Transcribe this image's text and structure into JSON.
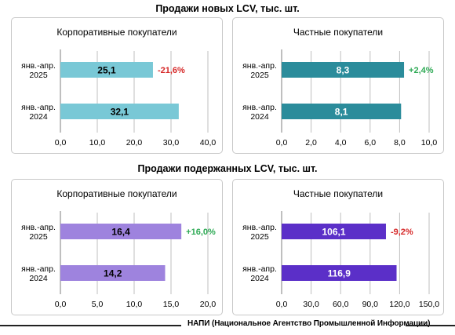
{
  "sections": [
    {
      "title": "Продажи новых LCV, тыс. шт."
    },
    {
      "title": "Продажи подержанных LCV, тыс. шт."
    }
  ],
  "footer": "НАПИ (Национальное Агентство Промышленной Информации)",
  "chart_data": [
    {
      "type": "bar",
      "title": "Корпоративные покупатели",
      "categories": [
        "янв.-апр.|2025",
        "янв.-апр.|2024"
      ],
      "values": [
        25.1,
        32.1
      ],
      "value_labels": [
        "25,1",
        "32,1"
      ],
      "change": "-21,6%",
      "change_color": "#d62828",
      "bar_color": "#79c8d6",
      "label_color": "#000000",
      "xlim": [
        0,
        40
      ],
      "ticks": [
        "0,0",
        "10,0",
        "20,0",
        "30,0",
        "40,0"
      ]
    },
    {
      "type": "bar",
      "title": "Частные покупатели",
      "categories": [
        "янв.-апр.|2025",
        "янв.-апр.|2024"
      ],
      "values": [
        8.3,
        8.1
      ],
      "value_labels": [
        "8,3",
        "8,1"
      ],
      "change": "+2,4%",
      "change_color": "#2eaa55",
      "bar_color": "#2b8c9b",
      "label_color": "#ffffff",
      "xlim": [
        0,
        10
      ],
      "ticks": [
        "0,0",
        "2,0",
        "4,0",
        "6,0",
        "8,0",
        "10,0"
      ]
    },
    {
      "type": "bar",
      "title": "Корпоративные покупатели",
      "categories": [
        "янв.-апр.|2025",
        "янв.-апр.|2024"
      ],
      "values": [
        16.4,
        14.2
      ],
      "value_labels": [
        "16,4",
        "14,2"
      ],
      "change": "+16,0%",
      "change_color": "#2eaa55",
      "bar_color": "#9e83de",
      "label_color": "#000000",
      "xlim": [
        0,
        20
      ],
      "ticks": [
        "0,0",
        "5,0",
        "10,0",
        "15,0",
        "20,0"
      ]
    },
    {
      "type": "bar",
      "title": "Частные покупатели",
      "categories": [
        "янв.-апр.|2025",
        "янв.-апр.|2024"
      ],
      "values": [
        106.1,
        116.9
      ],
      "value_labels": [
        "106,1",
        "116,9"
      ],
      "change": "-9,2%",
      "change_color": "#d62828",
      "bar_color": "#5b2fc8",
      "label_color": "#ffffff",
      "xlim": [
        0,
        150
      ],
      "ticks": [
        "0,0",
        "30,0",
        "60,0",
        "90,0",
        "120,0",
        "150,0"
      ]
    }
  ]
}
